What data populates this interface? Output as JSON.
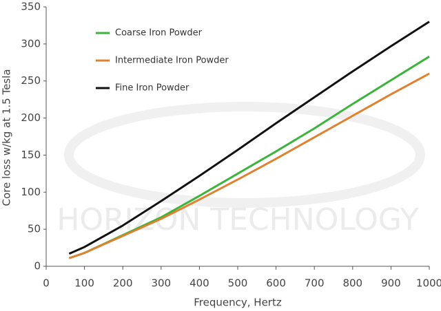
{
  "chart_data": {
    "type": "line",
    "x_label": "Frequency, Hertz",
    "y_label": "Core loss w/kg at 1.5 Tesla",
    "watermark": "HORIZON TECHNOLOGY",
    "x": [
      60,
      100,
      200,
      300,
      400,
      500,
      600,
      700,
      800,
      900,
      1000
    ],
    "series": [
      {
        "name": "Coarse Iron Powder",
        "color": "#3cb43c",
        "values": [
          11,
          18,
          42,
          66,
          95,
          125,
          155,
          186,
          219,
          251,
          283
        ]
      },
      {
        "name": "Intermediate Iron Powder",
        "color": "#e0812f",
        "values": [
          11,
          18,
          41,
          64,
          90,
          117,
          145,
          174,
          203,
          232,
          260
        ]
      },
      {
        "name": "Fine Iron Powder",
        "color": "#111111",
        "values": [
          17,
          26,
          55,
          88,
          122,
          157,
          193,
          228,
          263,
          297,
          330
        ]
      }
    ],
    "xlim": [
      0,
      1000
    ],
    "xticks": [
      0,
      100,
      200,
      300,
      400,
      500,
      600,
      700,
      800,
      900,
      1000
    ],
    "ylim": [
      0,
      350
    ],
    "yticks": [
      0,
      50,
      100,
      150,
      200,
      250,
      300,
      350
    ],
    "grid": false,
    "legend": "upper-left"
  }
}
